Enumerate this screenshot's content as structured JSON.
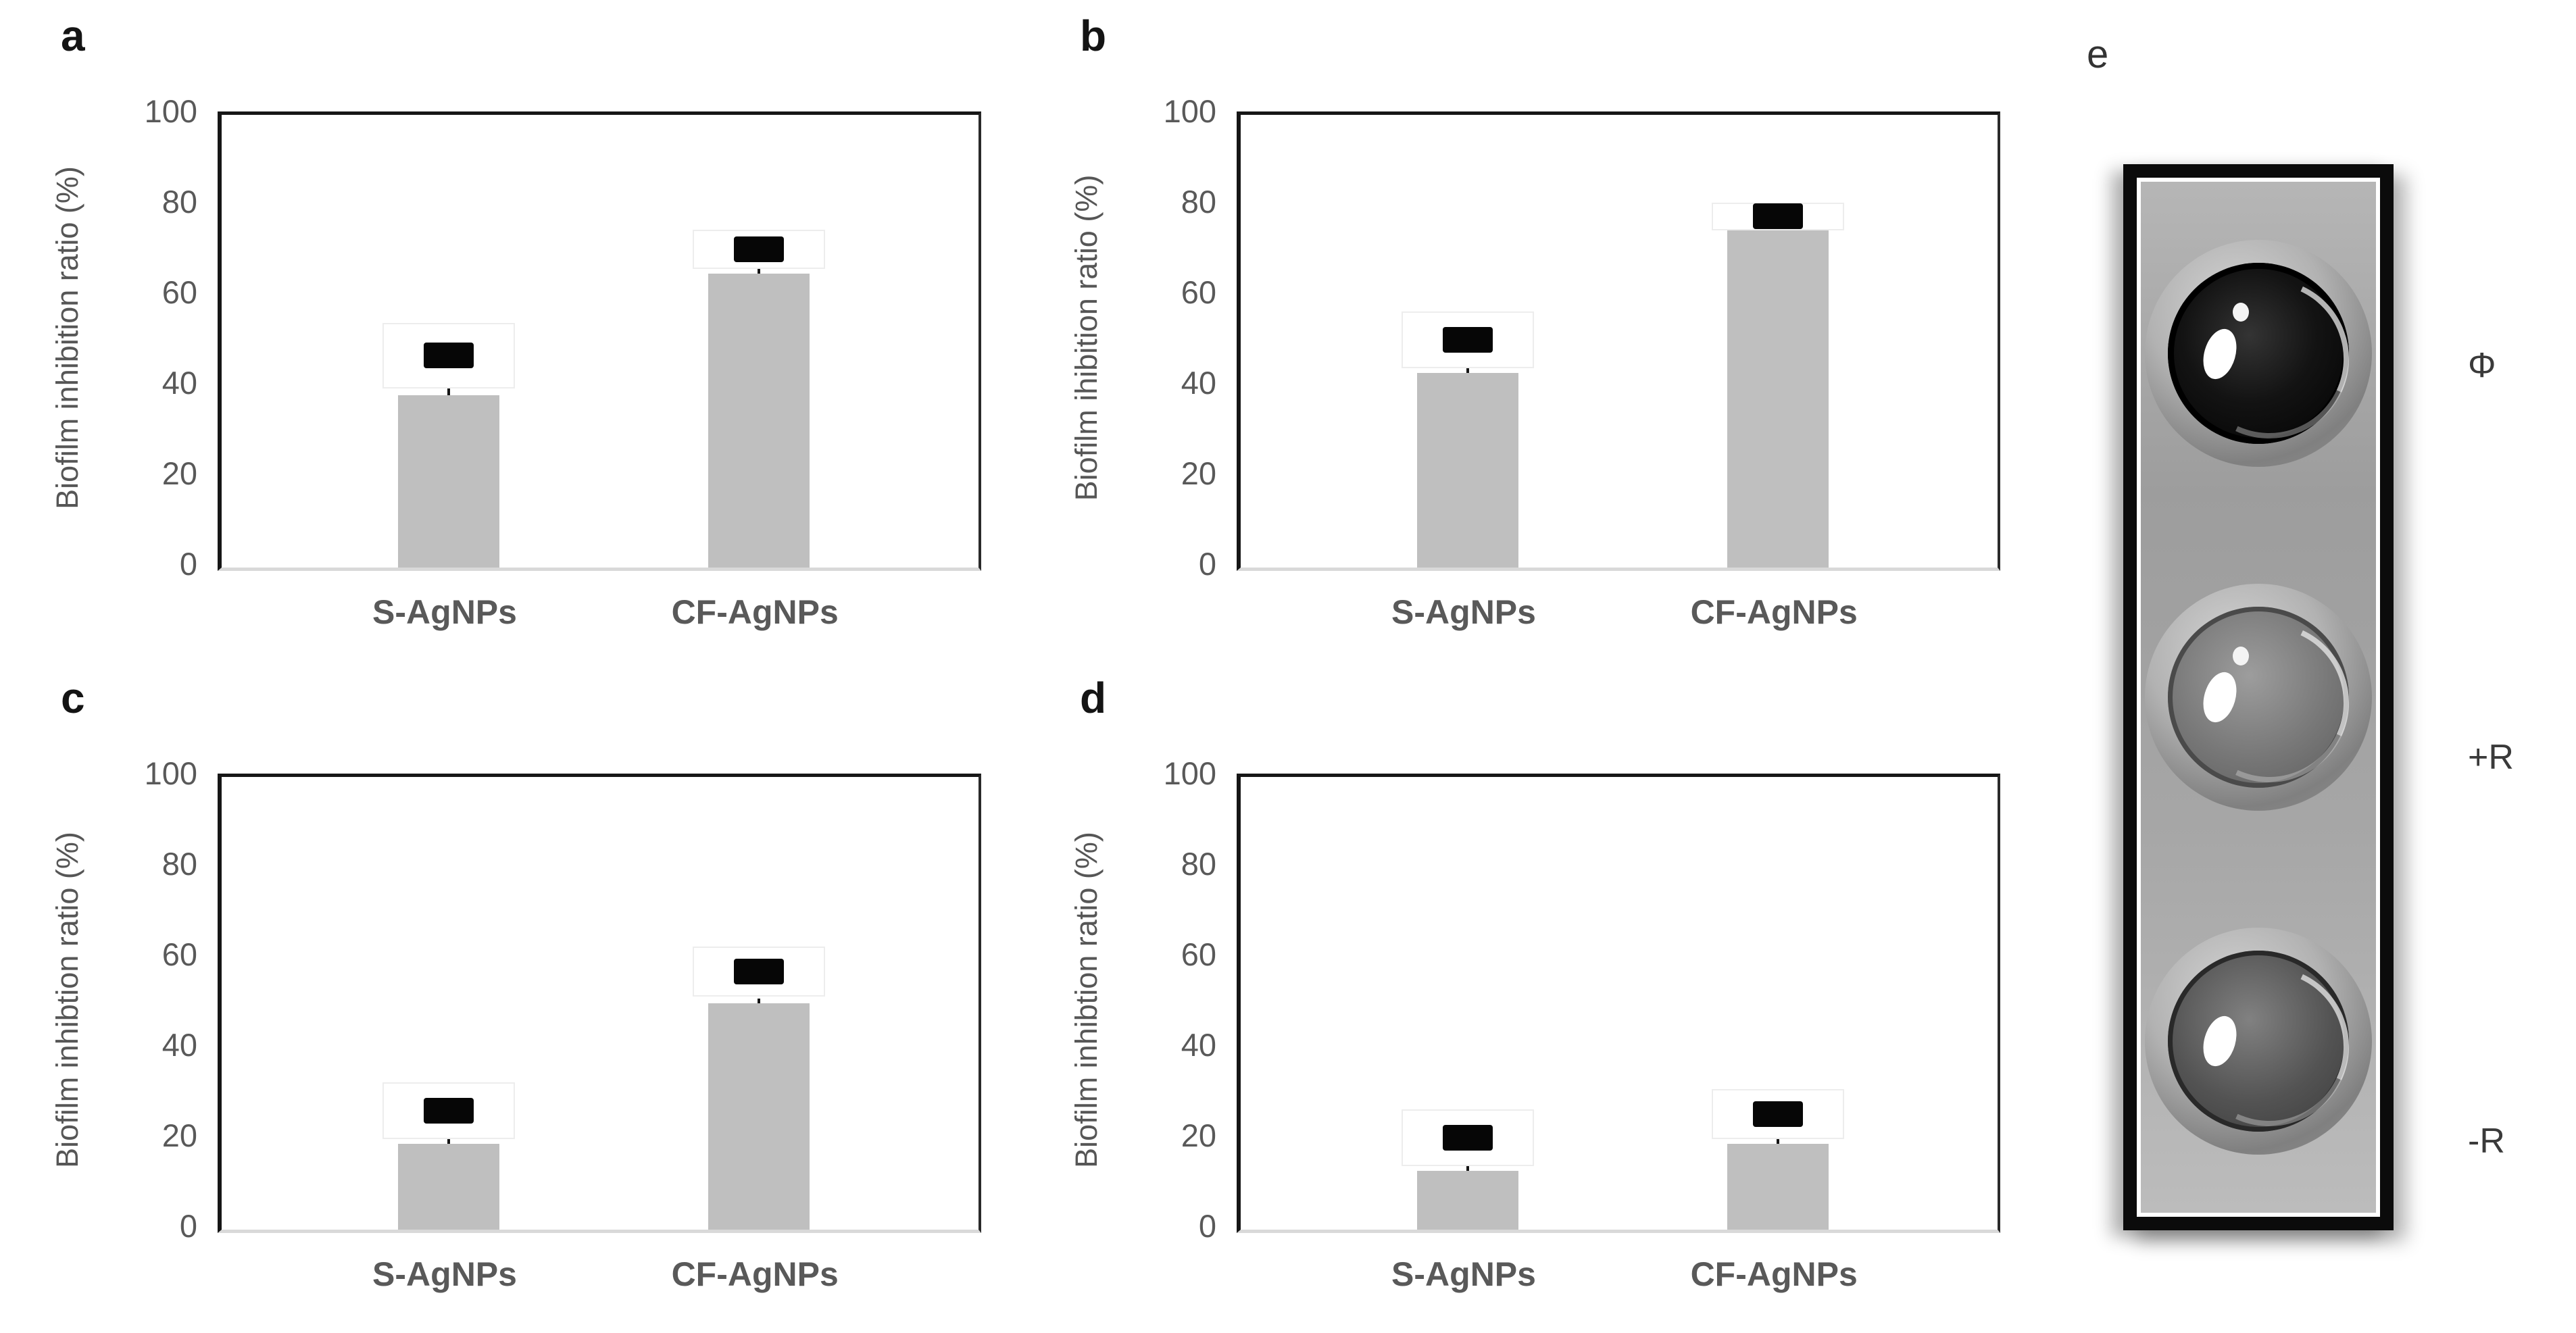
{
  "chart_data": [
    {
      "type": "bar",
      "panel_label": "a",
      "ylabel": "Biofilm inhibition ratio (%)",
      "xlabel": "",
      "categories": [
        "S-AgNPs",
        "CF-AgNPs"
      ],
      "values": [
        38,
        65
      ],
      "errors": [
        2,
        1
      ],
      "ylim": [
        0,
        100
      ],
      "yticks": [
        100,
        80,
        60,
        40,
        20,
        0
      ],
      "grid": false,
      "legend": null,
      "bar_color": "#bfbfbf",
      "marker_color": "#060606",
      "markers": [
        {
          "box_lo": 39.5,
          "box_hi": 53.5,
          "center": 47.5
        },
        {
          "box_lo": 66.0,
          "box_hi": 74.0,
          "center": 70.0
        }
      ]
    },
    {
      "type": "bar",
      "panel_label": "b",
      "ylabel": "Biofilm ihibition ratio (%)",
      "xlabel": "",
      "categories": [
        "S-AgNPs",
        "CF-AgNPs"
      ],
      "values": [
        43,
        75
      ],
      "errors": [
        2,
        1
      ],
      "ylim": [
        0,
        100
      ],
      "yticks": [
        100,
        80,
        60,
        40,
        20,
        0
      ],
      "grid": false,
      "legend": null,
      "bar_color": "#bfbfbf",
      "marker_color": "#060606",
      "markers": [
        {
          "box_lo": 44.0,
          "box_hi": 56.0,
          "center": 48.5
        },
        {
          "box_lo": 74.5,
          "box_hi": 80.0,
          "center": 77.0
        }
      ]
    },
    {
      "type": "bar",
      "panel_label": "c",
      "ylabel": "Biofilm inhibtion ratio (%)",
      "xlabel": "",
      "categories": [
        "S-AgNPs",
        "CF-AgNPs"
      ],
      "values": [
        19,
        50
      ],
      "errors": [
        1,
        1
      ],
      "ylim": [
        0,
        100
      ],
      "yticks": [
        100,
        80,
        60,
        40,
        20,
        0
      ],
      "grid": false,
      "legend": null,
      "bar_color": "#bfbfbf",
      "marker_color": "#060606",
      "markers": [
        {
          "box_lo": 20.0,
          "box_hi": 32.0,
          "center": 26.5
        },
        {
          "box_lo": 51.5,
          "box_hi": 62.0,
          "center": 57.0
        }
      ]
    },
    {
      "type": "bar",
      "panel_label": "d",
      "ylabel": "Biofilm inhibtion ratio (%)",
      "xlabel": "",
      "categories": [
        "S-AgNPs",
        "CF-AgNPs"
      ],
      "values": [
        13,
        19
      ],
      "errors": [
        1.5,
        2
      ],
      "ylim": [
        0,
        100
      ],
      "yticks": [
        100,
        80,
        60,
        40,
        20,
        0
      ],
      "grid": false,
      "legend": null,
      "bar_color": "#bfbfbf",
      "marker_color": "#060606",
      "markers": [
        {
          "box_lo": 14.0,
          "box_hi": 26.0,
          "center": 17.5
        },
        {
          "box_lo": 20.0,
          "box_hi": 30.5,
          "center": 22.5
        }
      ]
    }
  ],
  "panel_e": {
    "letter": "e",
    "well_labels": [
      "Φ",
      "+R",
      "-R"
    ]
  }
}
